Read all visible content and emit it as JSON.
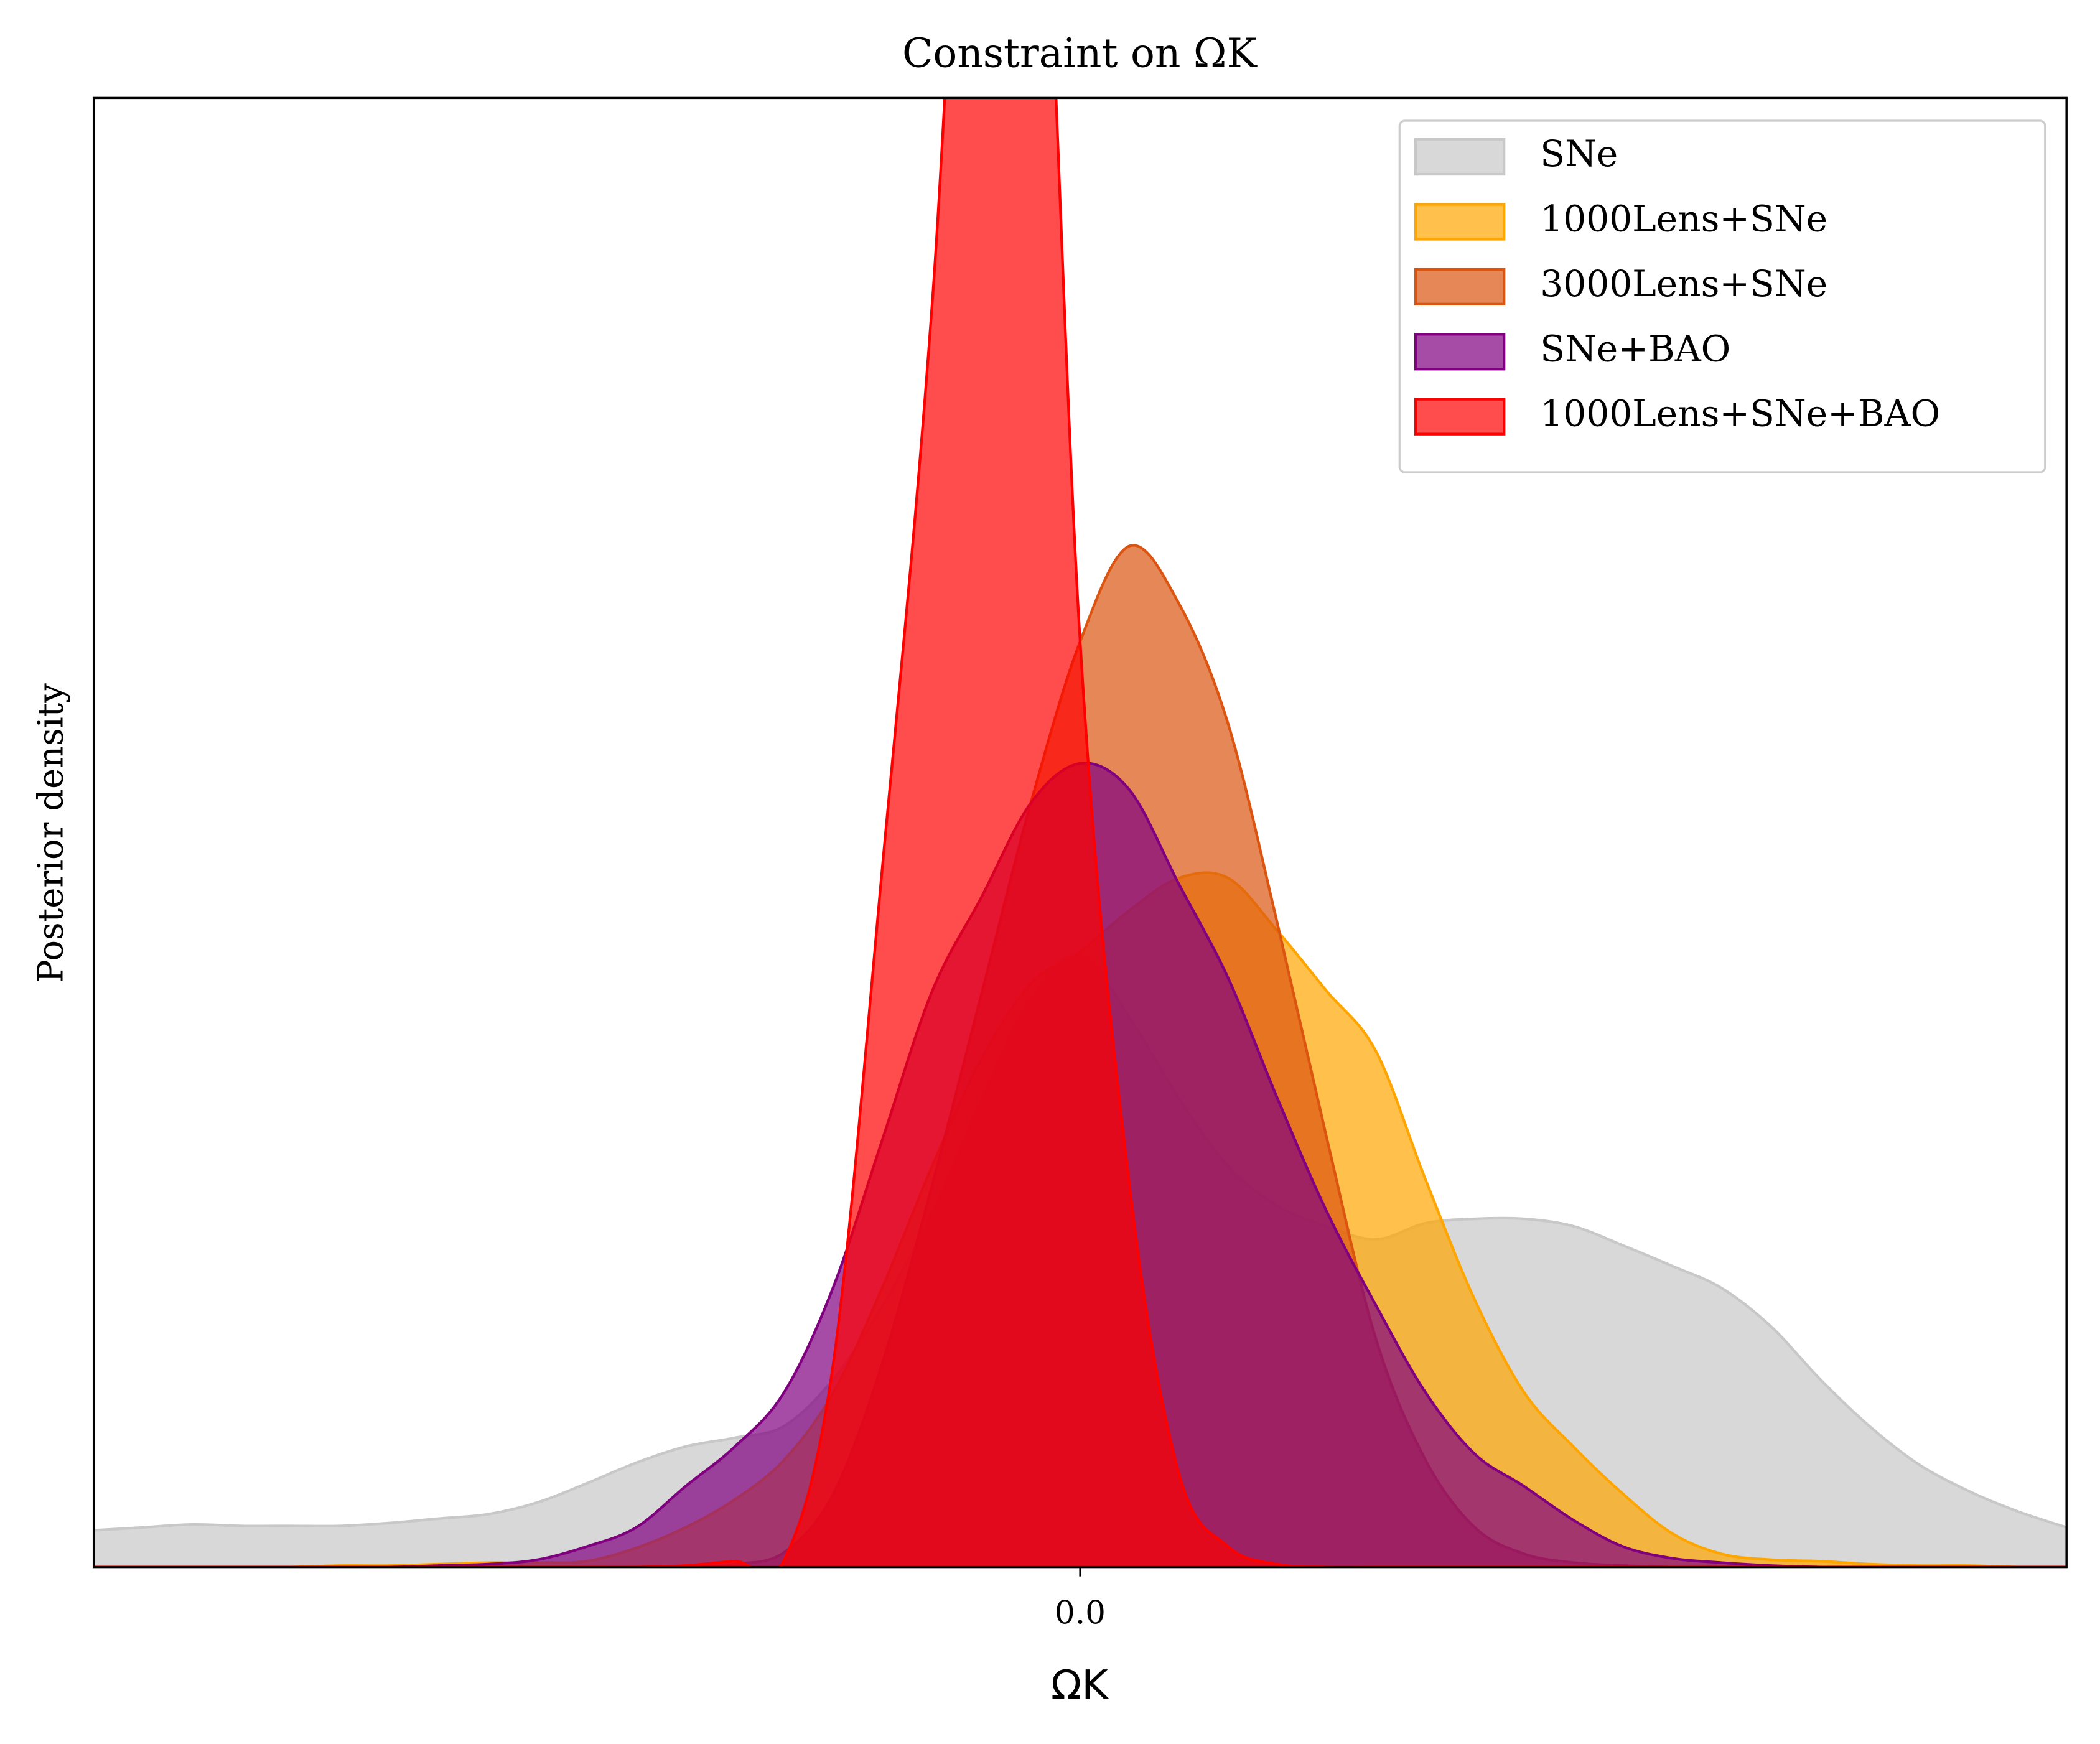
{
  "chart_data": {
    "type": "area",
    "title": "Constraint on ΩK",
    "xlabel": "ΩK",
    "ylabel": "Posterior density",
    "x": [
      -1,
      -0.95,
      -0.9,
      -0.85,
      -0.8,
      -0.75,
      -0.7,
      -0.65,
      -0.6,
      -0.55,
      -0.5,
      -0.45,
      -0.4,
      -0.35,
      -0.3,
      -0.25,
      -0.2,
      -0.15,
      -0.1,
      -0.05,
      0,
      0.05,
      0.1,
      0.15,
      0.2,
      0.25,
      0.3,
      0.35,
      0.4,
      0.45,
      0.5,
      0.55,
      0.6,
      0.65,
      0.7,
      0.75,
      0.8,
      0.85,
      0.9,
      0.95,
      1
    ],
    "xlim": [
      -1,
      1
    ],
    "xticks": [
      {
        "value": 0,
        "label": "0.0"
      }
    ],
    "ylim": [
      0,
      10
    ],
    "alpha": 0.7,
    "legend": "upper right",
    "series": [
      {
        "name": "SNe",
        "color": "#c8c8c8",
        "values": [
          0.25,
          0.27,
          0.29,
          0.28,
          0.28,
          0.28,
          0.3,
          0.33,
          0.36,
          0.44,
          0.57,
          0.71,
          0.82,
          0.88,
          0.96,
          1.28,
          1.78,
          2.42,
          3.19,
          3.87,
          4.17,
          3.74,
          3.19,
          2.73,
          2.46,
          2.32,
          2.23,
          2.34,
          2.37,
          2.37,
          2.32,
          2.19,
          2.05,
          1.9,
          1.64,
          1.28,
          0.96,
          0.7,
          0.52,
          0.38,
          0.27
        ]
      },
      {
        "name": "1000Lens+SNe",
        "color": "orange",
        "values": [
          0,
          0,
          0,
          0,
          0,
          0.01,
          0.01,
          0.02,
          0.03,
          0.03,
          0.04,
          0.13,
          0.27,
          0.46,
          0.73,
          1.19,
          1.91,
          2.73,
          3.46,
          3.97,
          4.19,
          4.47,
          4.69,
          4.69,
          4.33,
          3.92,
          3.51,
          2.64,
          1.82,
          1.19,
          0.82,
          0.5,
          0.23,
          0.09,
          0.05,
          0.04,
          0.02,
          0.01,
          0.01,
          0,
          0
        ]
      },
      {
        "name": "3000Lens+SNe",
        "color": "#db5410",
        "values": [
          0,
          0,
          0,
          0,
          0,
          0,
          0,
          0,
          0,
          0,
          0,
          0,
          0,
          0.02,
          0.1,
          0.5,
          1.4,
          2.6,
          3.9,
          5.2,
          6.3,
          6.95,
          6.56,
          5.74,
          4.38,
          2.92,
          1.55,
          0.73,
          0.27,
          0.09,
          0.03,
          0.01,
          0,
          0,
          0,
          0,
          0,
          0,
          0,
          0,
          0
        ]
      },
      {
        "name": "SNe+BAO",
        "color": "purple",
        "values": [
          0,
          0,
          0,
          0,
          0,
          0,
          0,
          0.01,
          0.02,
          0.05,
          0.14,
          0.27,
          0.55,
          0.82,
          1.19,
          1.91,
          2.92,
          3.92,
          4.56,
          5.2,
          5.47,
          5.29,
          4.65,
          4.01,
          3.19,
          2.42,
          1.78,
          1.19,
          0.77,
          0.55,
          0.32,
          0.14,
          0.06,
          0.03,
          0.01,
          0,
          0,
          0,
          0,
          0,
          0
        ]
      },
      {
        "name": "1000Lens+SNe+BAO",
        "color": "red",
        "values": [
          0,
          0,
          0,
          0,
          0,
          0,
          0,
          0,
          0,
          0,
          0,
          0,
          0.01,
          0.04,
          0.05,
          1.4,
          4.8,
          8.6,
          14,
          13.5,
          6.3,
          2.6,
          0.64,
          0.14,
          0.02,
          0,
          0,
          0,
          0,
          0,
          0,
          0,
          0,
          0,
          0,
          0,
          0,
          0,
          0,
          0,
          0
        ]
      }
    ]
  }
}
